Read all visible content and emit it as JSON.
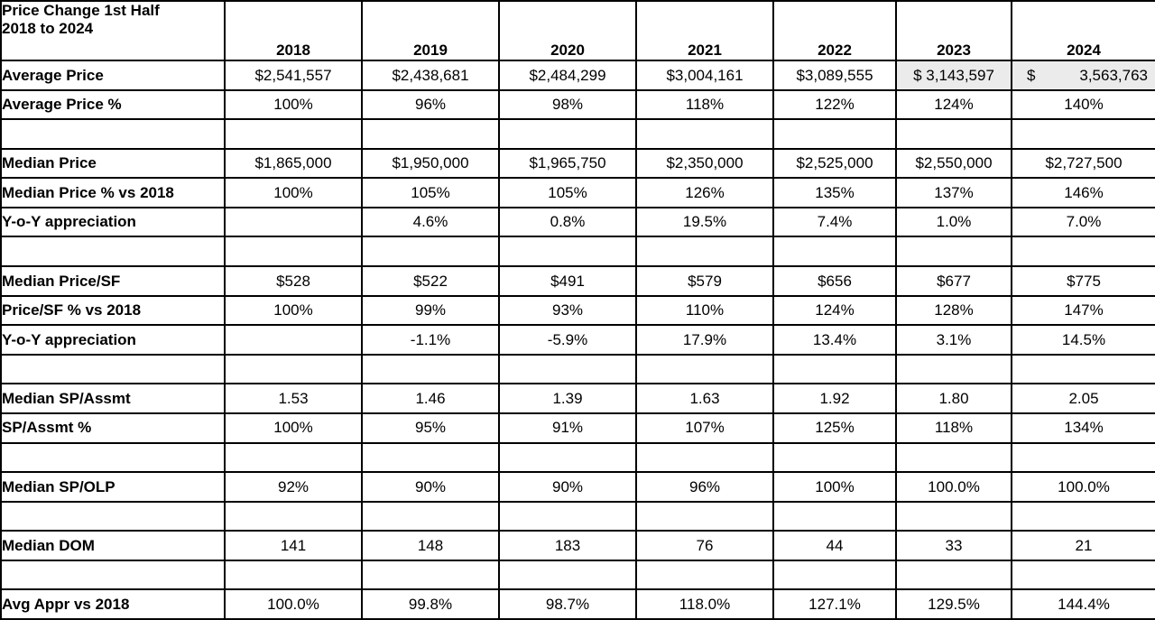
{
  "table": {
    "title_line1": "Price Change 1st Half",
    "title_line2": "2018 to 2024",
    "columns": [
      "2018",
      "2019",
      "2020",
      "2021",
      "2022",
      "2023",
      "2024"
    ],
    "highlight_color": "#ebebeb",
    "border_color": "#000000",
    "rows": [
      {
        "label": "Average Price",
        "values": [
          "$2,541,557",
          "$2,438,681",
          "$2,484,299",
          "$3,004,161",
          "$3,089,555",
          "$ 3,143,597",
          {
            "currency": "$",
            "amount": "3,563,763"
          }
        ],
        "highlight_cols": [
          5,
          6
        ]
      },
      {
        "label": "Average Price %",
        "values": [
          "100%",
          "96%",
          "98%",
          "118%",
          "122%",
          "124%",
          "140%"
        ]
      },
      {
        "label": "",
        "values": [
          "",
          "",
          "",
          "",
          "",
          "",
          ""
        ]
      },
      {
        "label": "Median Price",
        "values": [
          "$1,865,000",
          "$1,950,000",
          "$1,965,750",
          "$2,350,000",
          "$2,525,000",
          "$2,550,000",
          "$2,727,500"
        ]
      },
      {
        "label": "Median Price % vs 2018",
        "values": [
          "100%",
          "105%",
          "105%",
          "126%",
          "135%",
          "137%",
          "146%"
        ]
      },
      {
        "label": "Y-o-Y appreciation",
        "values": [
          "",
          "4.6%",
          "0.8%",
          "19.5%",
          "7.4%",
          "1.0%",
          "7.0%"
        ]
      },
      {
        "label": "",
        "values": [
          "",
          "",
          "",
          "",
          "",
          "",
          ""
        ]
      },
      {
        "label": "Median Price/SF",
        "values": [
          "$528",
          "$522",
          "$491",
          "$579",
          "$656",
          "$677",
          "$775"
        ]
      },
      {
        "label": "Price/SF % vs 2018",
        "values": [
          "100%",
          "99%",
          "93%",
          "110%",
          "124%",
          "128%",
          "147%"
        ]
      },
      {
        "label": "Y-o-Y appreciation",
        "values": [
          "",
          "-1.1%",
          "-5.9%",
          "17.9%",
          "13.4%",
          "3.1%",
          "14.5%"
        ]
      },
      {
        "label": "",
        "values": [
          "",
          "",
          "",
          "",
          "",
          "",
          ""
        ]
      },
      {
        "label": "Median SP/Assmt",
        "values": [
          "1.53",
          "1.46",
          "1.39",
          "1.63",
          "1.92",
          "1.80",
          "2.05"
        ]
      },
      {
        "label": "SP/Assmt %",
        "values": [
          "100%",
          "95%",
          "91%",
          "107%",
          "125%",
          "118%",
          "134%"
        ]
      },
      {
        "label": "",
        "values": [
          "",
          "",
          "",
          "",
          "",
          "",
          ""
        ]
      },
      {
        "label": "Median SP/OLP",
        "values": [
          "92%",
          "90%",
          "90%",
          "96%",
          "100%",
          "100.0%",
          "100.0%"
        ]
      },
      {
        "label": "",
        "values": [
          "",
          "",
          "",
          "",
          "",
          "",
          ""
        ]
      },
      {
        "label": "Median DOM",
        "values": [
          "141",
          "148",
          "183",
          "76",
          "44",
          "33",
          "21"
        ]
      },
      {
        "label": "",
        "values": [
          "",
          "",
          "",
          "",
          "",
          "",
          ""
        ]
      },
      {
        "label": "Avg Appr vs 2018",
        "values": [
          "100.0%",
          "99.8%",
          "98.7%",
          "118.0%",
          "127.1%",
          "129.5%",
          "144.4%"
        ]
      }
    ]
  }
}
